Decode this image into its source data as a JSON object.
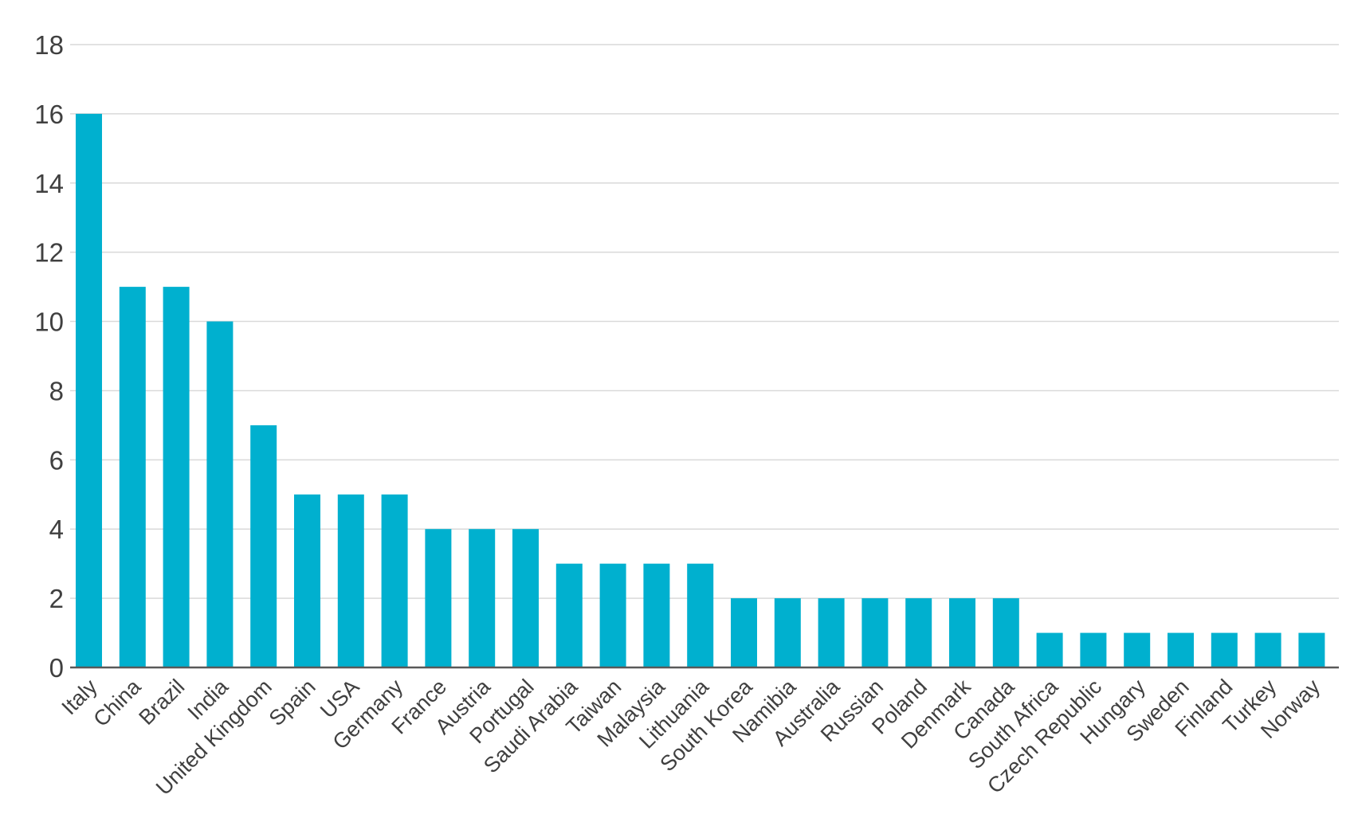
{
  "chart_data": {
    "type": "bar",
    "categories": [
      "Italy",
      "China",
      "Brazil",
      "India",
      "United Kingdom",
      "Spain",
      "USA",
      "Germany",
      "France",
      "Austria",
      "Portugal",
      "Saudi Arabia",
      "Taiwan",
      "Malaysia",
      "Lithuania",
      "South Korea",
      "Namibia",
      "Australia",
      "Russian",
      "Poland",
      "Denmark",
      "Canada",
      "South Africa",
      "Czech Republic",
      "Hungary",
      "Sweden",
      "Finland",
      "Turkey",
      "Norway"
    ],
    "values": [
      16,
      11,
      11,
      10,
      7,
      5,
      5,
      5,
      4,
      4,
      4,
      3,
      3,
      3,
      3,
      2,
      2,
      2,
      2,
      2,
      2,
      2,
      1,
      1,
      1,
      1,
      1,
      1,
      1
    ],
    "ylim": [
      0,
      18
    ],
    "yticks": [
      "0",
      "2",
      "4",
      "6",
      "8",
      "10",
      "12",
      "14",
      "16",
      "18"
    ],
    "grid": true,
    "title": "",
    "xlabel": "",
    "ylabel": "",
    "colors": {
      "bar": "#00b0cf",
      "grid": "#d9d9d9",
      "axis": "#595959",
      "text": "#404040"
    }
  }
}
